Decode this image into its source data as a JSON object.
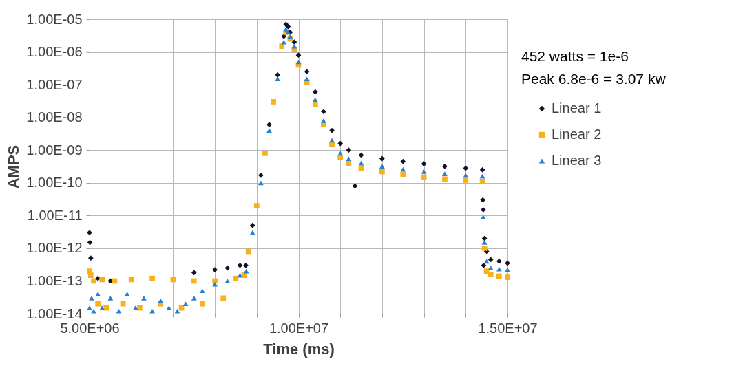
{
  "chart_data": {
    "type": "scatter",
    "xlabel": "Time (ms)",
    "ylabel": "AMPS",
    "log": "y",
    "grid": true,
    "legend": "right",
    "xlim": [
      5000000.0,
      15000000.0
    ],
    "xticks": [
      {
        "value": 5000000.0,
        "label": "5.00E+06"
      },
      {
        "value": 6000000.0,
        "label": null
      },
      {
        "value": 7000000.0,
        "label": null
      },
      {
        "value": 8000000.0,
        "label": null
      },
      {
        "value": 9000000.0,
        "label": null
      },
      {
        "value": 10000000.0,
        "label": "1.00E+07"
      },
      {
        "value": 11000000.0,
        "label": null
      },
      {
        "value": 12000000.0,
        "label": null
      },
      {
        "value": 13000000.0,
        "label": null
      },
      {
        "value": 14000000.0,
        "label": null
      },
      {
        "value": 15000000.0,
        "label": "1.50E+07"
      }
    ],
    "ylim": [
      1e-14,
      1e-05
    ],
    "yticks": [
      {
        "value": 1e-14,
        "label": "1.00E-14"
      },
      {
        "value": 1e-13,
        "label": "1.00E-13"
      },
      {
        "value": 1e-12,
        "label": "1.00E-12"
      },
      {
        "value": 1e-11,
        "label": "1.00E-11"
      },
      {
        "value": 1e-10,
        "label": "1.00E-10"
      },
      {
        "value": 1e-09,
        "label": "1.00E-09"
      },
      {
        "value": 1e-08,
        "label": "1.00E-08"
      },
      {
        "value": 1e-07,
        "label": "1.00E-07"
      },
      {
        "value": 1e-06,
        "label": "1.00E-06"
      },
      {
        "value": 1e-05,
        "label": "1.00E-05"
      }
    ],
    "annotations": [
      "452 watts = 1e-6",
      "Peak 6.8e-6  = 3.07 kw"
    ],
    "series": [
      {
        "name": "Linear 1",
        "color": "#14102a",
        "marker": "diamond",
        "x": [
          5000000.0,
          5010000.0,
          5030000.0,
          5060000.0,
          5200000.0,
          5500000.0,
          6000000.0,
          6500000.0,
          7000000.0,
          7500000.0,
          8000000.0,
          8300000.0,
          8600000.0,
          8740000.0,
          8900000.0,
          9100000.0,
          9300000.0,
          9500000.0,
          9650000.0,
          9700000.0,
          9750000.0,
          9800000.0,
          9900000.0,
          10000000.0,
          10200000.0,
          10400000.0,
          10600000.0,
          10800000.0,
          11000000.0,
          11200000.0,
          11350000.0,
          11500000.0,
          12000000.0,
          12500000.0,
          13000000.0,
          13500000.0,
          14000000.0,
          14400000.0,
          14410000.0,
          14420000.0,
          14430000.0,
          14450000.0,
          14500000.0,
          14600000.0,
          14800000.0,
          15000000.0
        ],
        "values": [
          3e-12,
          1.5e-12,
          5e-13,
          null,
          1.2e-13,
          1e-13,
          null,
          null,
          null,
          1.8e-13,
          2.2e-13,
          2.5e-13,
          3e-13,
          3e-13,
          5e-12,
          1.7e-10,
          6e-09,
          2e-07,
          3e-06,
          7e-06,
          6e-06,
          4e-06,
          2e-06,
          8e-07,
          2.5e-07,
          6e-08,
          1.5e-08,
          4e-09,
          1.6e-09,
          1e-09,
          8e-11,
          7e-10,
          5.5e-10,
          4.5e-10,
          3.8e-10,
          3.2e-10,
          2.8e-10,
          2.5e-10,
          3e-11,
          1.5e-11,
          3e-13,
          2e-12,
          8e-13,
          4.5e-13,
          4e-13,
          3.5e-13
        ]
      },
      {
        "name": "Linear 2",
        "color": "#f7b21b",
        "marker": "square",
        "x": [
          5000000.0,
          5030000.0,
          5100000.0,
          5200000.0,
          5300000.0,
          5400000.0,
          5600000.0,
          5800000.0,
          6000000.0,
          6200000.0,
          6500000.0,
          6700000.0,
          7000000.0,
          7200000.0,
          7500000.0,
          7700000.0,
          8000000.0,
          8200000.0,
          8500000.0,
          8700000.0,
          8800000.0,
          9000000.0,
          9200000.0,
          9400000.0,
          9600000.0,
          9700000.0,
          9800000.0,
          9900000.0,
          10000000.0,
          10200000.0,
          10400000.0,
          10600000.0,
          10800000.0,
          11000000.0,
          11200000.0,
          11500000.0,
          12000000.0,
          12500000.0,
          13000000.0,
          13500000.0,
          14000000.0,
          14400000.0,
          14420000.0,
          14450000.0,
          14500000.0,
          14600000.0,
          14800000.0,
          15000000.0
        ],
        "values": [
          2e-13,
          1.5e-13,
          1e-13,
          2e-14,
          1.1e-13,
          1.5e-14,
          1e-13,
          2e-14,
          1.1e-13,
          1.5e-14,
          1.2e-13,
          2e-14,
          1.1e-13,
          1.5e-14,
          1e-13,
          2e-14,
          1e-13,
          3e-14,
          1.2e-13,
          1.5e-13,
          8e-13,
          2e-11,
          8e-10,
          3e-08,
          1.5e-06,
          4e-06,
          2.5e-06,
          1.2e-06,
          4e-07,
          1.2e-07,
          2.5e-08,
          6e-09,
          1.5e-09,
          6e-10,
          4e-10,
          2.8e-10,
          2.2e-10,
          1.8e-10,
          1.5e-10,
          1.3e-10,
          1.2e-10,
          1.1e-10,
          null,
          1e-12,
          2e-13,
          1.6e-13,
          1.4e-13,
          1.3e-13
        ]
      },
      {
        "name": "Linear 3",
        "color": "#2781cf",
        "marker": "triangle",
        "x": [
          5000000.0,
          5050000.0,
          5100000.0,
          5200000.0,
          5300000.0,
          5500000.0,
          5700000.0,
          5900000.0,
          6100000.0,
          6300000.0,
          6500000.0,
          6700000.0,
          6900000.0,
          7100000.0,
          7300000.0,
          7500000.0,
          7700000.0,
          8000000.0,
          8300000.0,
          8600000.0,
          8750000.0,
          8900000.0,
          9100000.0,
          9300000.0,
          9500000.0,
          9650000.0,
          9700000.0,
          9750000.0,
          9800000.0,
          9900000.0,
          10000000.0,
          10200000.0,
          10400000.0,
          10600000.0,
          10800000.0,
          11000000.0,
          11200000.0,
          11500000.0,
          12000000.0,
          12500000.0,
          13000000.0,
          13500000.0,
          14000000.0,
          14400000.0,
          14420000.0,
          14450000.0,
          14500000.0,
          14600000.0,
          14800000.0,
          15000000.0
        ],
        "values": [
          1.5e-14,
          3e-14,
          1.2e-14,
          4e-14,
          1.5e-14,
          3e-14,
          1.2e-14,
          4e-14,
          1.5e-14,
          3e-14,
          1.2e-14,
          2.5e-14,
          1.5e-14,
          1.2e-14,
          2e-14,
          3e-14,
          5e-14,
          8e-14,
          1e-13,
          1.5e-13,
          2e-13,
          3e-12,
          1e-10,
          4e-09,
          1.5e-07,
          2e-06,
          5e-06,
          4e-06,
          3e-06,
          1.5e-06,
          5e-07,
          1.5e-07,
          3.5e-08,
          8e-09,
          2e-09,
          8e-10,
          5.5e-10,
          4e-10,
          3.2e-10,
          2.6e-10,
          2.2e-10,
          1.9e-10,
          1.7e-10,
          1.6e-10,
          9e-12,
          1.5e-12,
          4e-13,
          2.5e-13,
          2.3e-13,
          2.2e-13
        ]
      }
    ]
  }
}
